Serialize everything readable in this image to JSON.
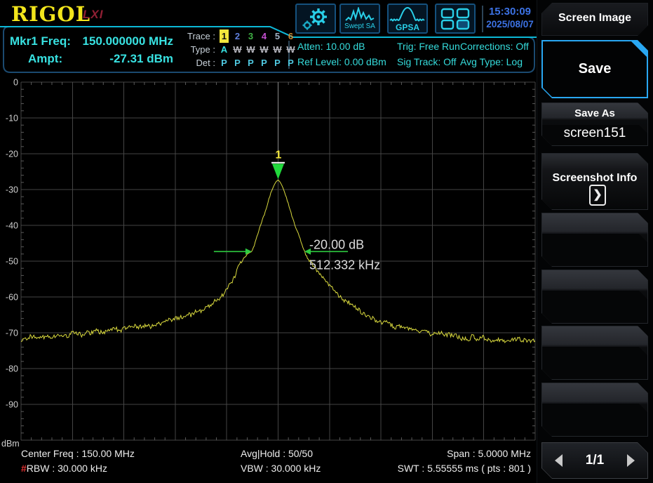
{
  "header": {
    "logo": "RIGOL",
    "lxi": "LXI",
    "marker_panel": {
      "mkr_freq_label": "Mkr1 Freq:",
      "mkr_freq_value": "150.000000 MHz",
      "ampt_label": "Ampt:",
      "ampt_value": "-27.31 dBm"
    },
    "trace_table": {
      "trace_label": "Trace :",
      "trace_numbers": [
        "1",
        "2",
        "3",
        "4",
        "5",
        "6"
      ],
      "trace_colors": [
        "#f2e63c",
        "#5f7fdc",
        "#3fb045",
        "#c44fd0",
        "#9fb0c4",
        "#d08a30"
      ],
      "type_label": "Type :",
      "type_values": [
        "A",
        "W",
        "W",
        "W",
        "W",
        "W"
      ],
      "type_active_color": "#38e2e2",
      "type_inactive_color": "#b4b4bc",
      "det_label": "Det :",
      "det_values": [
        "P",
        "P",
        "P",
        "P",
        "P",
        "P"
      ],
      "det_color": "#4fc8e0"
    },
    "toolbar": {
      "swept_sa": "Swept SA",
      "gpsa": "GPSA",
      "time": "15:30:09",
      "date": "2025/08/07"
    },
    "acq": [
      {
        "l1": "Atten: 10.00 dB",
        "l2": "Ref Level: 0.00 dBm"
      },
      {
        "l1": "Trig: Free Run",
        "l2": "Sig Track: Off"
      },
      {
        "l1": "Corrections: Off",
        "l2": "Avg Type: Log"
      }
    ]
  },
  "chart_data": {
    "type": "line",
    "ylabel": "dBm",
    "ylim": [
      -100,
      0
    ],
    "y_ticks": [
      "0",
      "-10",
      "-20",
      "-30",
      "-40",
      "-50",
      "-60",
      "-70",
      "-80",
      "-90"
    ],
    "x_axis": {
      "center_freq": "150.00 MHz",
      "span": "5.0000 MHz",
      "divisions": 10,
      "span_khz": 5000
    },
    "grid": true,
    "trace_color": "#d9d93e",
    "marker": {
      "id": "1",
      "freq": "150.000000 MHz",
      "ampl_dbm": -27.31,
      "color": "#21d93c"
    },
    "ndb_measure": {
      "delta_db": -20,
      "bandwidth_khz": 512.332,
      "label_db": "-20.00 dB",
      "label_bw": "512.332 kHz",
      "arrow_color": "#2ecc40"
    },
    "noise_floor_dbm": -71.5,
    "anchors_khz_dbm": [
      [
        -2500,
        -71.5
      ],
      [
        -2300,
        -71.2
      ],
      [
        -2100,
        -70.8
      ],
      [
        -1900,
        -70.2
      ],
      [
        -1700,
        -69.6
      ],
      [
        -1500,
        -69.0
      ],
      [
        -1300,
        -68.2
      ],
      [
        -1150,
        -67.4
      ],
      [
        -1000,
        -66.3
      ],
      [
        -850,
        -65.0
      ],
      [
        -750,
        -63.8
      ],
      [
        -650,
        -62.2
      ],
      [
        -560,
        -60.2
      ],
      [
        -480,
        -57.2
      ],
      [
        -420,
        -54.0
      ],
      [
        -370,
        -51.0
      ],
      [
        -330,
        -48.9
      ],
      [
        -300,
        -48.2
      ],
      [
        -256,
        -47.31
      ],
      [
        -220,
        -44.5
      ],
      [
        -180,
        -41.0
      ],
      [
        -140,
        -37.5
      ],
      [
        -100,
        -33.8
      ],
      [
        -70,
        -31.0
      ],
      [
        -40,
        -28.8
      ],
      [
        -20,
        -27.8
      ],
      [
        0,
        -27.31
      ],
      [
        20,
        -27.9
      ],
      [
        40,
        -29.0
      ],
      [
        70,
        -31.3
      ],
      [
        100,
        -34.0
      ],
      [
        140,
        -37.8
      ],
      [
        180,
        -41.2
      ],
      [
        220,
        -44.3
      ],
      [
        256,
        -47.31
      ],
      [
        290,
        -49.3
      ],
      [
        330,
        -51.0
      ],
      [
        380,
        -52.8
      ],
      [
        430,
        -54.6
      ],
      [
        490,
        -56.6
      ],
      [
        560,
        -58.6
      ],
      [
        640,
        -60.7
      ],
      [
        730,
        -62.8
      ],
      [
        830,
        -64.7
      ],
      [
        950,
        -66.4
      ],
      [
        1100,
        -68.0
      ],
      [
        1250,
        -69.0
      ],
      [
        1400,
        -69.8
      ],
      [
        1550,
        -70.4
      ],
      [
        1700,
        -71.0
      ],
      [
        1900,
        -71.5
      ],
      [
        2100,
        -71.9
      ],
      [
        2300,
        -72.2
      ],
      [
        2500,
        -72.4
      ]
    ]
  },
  "footer": {
    "center_freq": "Center Freq : 150.00 MHz",
    "rbw_prefix": "#",
    "rbw": "RBW : 30.000 kHz",
    "avg_hold": "Avg|Hold : 50/50",
    "vbw": "VBW : 30.000 kHz",
    "span": "Span : 5.0000 MHz",
    "swt": "SWT : 5.55555 ms ( pts : 801 )"
  },
  "sidebar": {
    "menu_title": "Screen Image",
    "save": "Save",
    "save_as": "Save As",
    "save_as_value": "screen151",
    "screenshot_info": "Screenshot Info",
    "chevron": "❯",
    "pager": "1/1"
  }
}
